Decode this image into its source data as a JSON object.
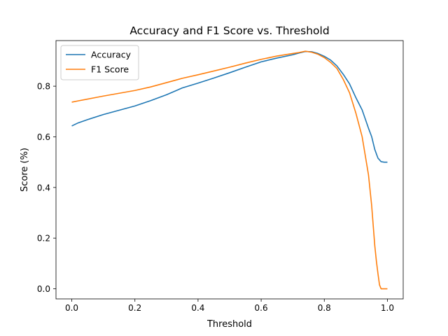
{
  "chart_data": {
    "type": "line",
    "title": "Accuracy and F1 Score vs. Threshold",
    "xlabel": "Threshold",
    "ylabel": "Score (%)",
    "xlim": [
      -0.05,
      1.05
    ],
    "ylim": [
      -0.04,
      0.98
    ],
    "xticks": [
      0.0,
      0.2,
      0.4,
      0.6,
      0.8,
      1.0
    ],
    "xtick_labels": [
      "0.0",
      "0.2",
      "0.4",
      "0.6",
      "0.8",
      "1.0"
    ],
    "yticks": [
      0.0,
      0.2,
      0.4,
      0.6,
      0.8
    ],
    "ytick_labels": [
      "0.0",
      "0.2",
      "0.4",
      "0.6",
      "0.8"
    ],
    "grid": false,
    "legend_position": "upper left",
    "series": [
      {
        "name": "Accuracy",
        "color": "#1f77b4",
        "x": [
          0.0,
          0.02,
          0.05,
          0.1,
          0.15,
          0.2,
          0.25,
          0.3,
          0.35,
          0.4,
          0.45,
          0.5,
          0.55,
          0.6,
          0.65,
          0.7,
          0.72,
          0.74,
          0.76,
          0.78,
          0.8,
          0.82,
          0.84,
          0.86,
          0.88,
          0.9,
          0.92,
          0.94,
          0.95,
          0.96,
          0.97,
          0.98,
          0.99,
          1.0
        ],
        "y": [
          0.643,
          0.655,
          0.668,
          0.688,
          0.705,
          0.722,
          0.743,
          0.766,
          0.793,
          0.812,
          0.832,
          0.853,
          0.875,
          0.896,
          0.911,
          0.924,
          0.931,
          0.937,
          0.936,
          0.929,
          0.918,
          0.903,
          0.88,
          0.847,
          0.809,
          0.755,
          0.706,
          0.634,
          0.601,
          0.55,
          0.516,
          0.502,
          0.5,
          0.5
        ]
      },
      {
        "name": "F1 Score",
        "color": "#ff7f0e",
        "x": [
          0.0,
          0.02,
          0.05,
          0.1,
          0.15,
          0.2,
          0.25,
          0.3,
          0.35,
          0.4,
          0.45,
          0.5,
          0.55,
          0.6,
          0.65,
          0.7,
          0.72,
          0.74,
          0.76,
          0.78,
          0.8,
          0.82,
          0.84,
          0.86,
          0.88,
          0.9,
          0.92,
          0.94,
          0.95,
          0.955,
          0.96,
          0.965,
          0.97,
          0.975,
          0.98,
          0.99,
          1.0
        ],
        "y": [
          0.737,
          0.742,
          0.749,
          0.761,
          0.772,
          0.783,
          0.797,
          0.814,
          0.831,
          0.845,
          0.86,
          0.875,
          0.891,
          0.906,
          0.919,
          0.929,
          0.933,
          0.938,
          0.934,
          0.926,
          0.913,
          0.894,
          0.87,
          0.827,
          0.774,
          0.694,
          0.6,
          0.45,
          0.33,
          0.25,
          0.17,
          0.11,
          0.06,
          0.015,
          0.0,
          0.0,
          0.0
        ]
      }
    ]
  }
}
